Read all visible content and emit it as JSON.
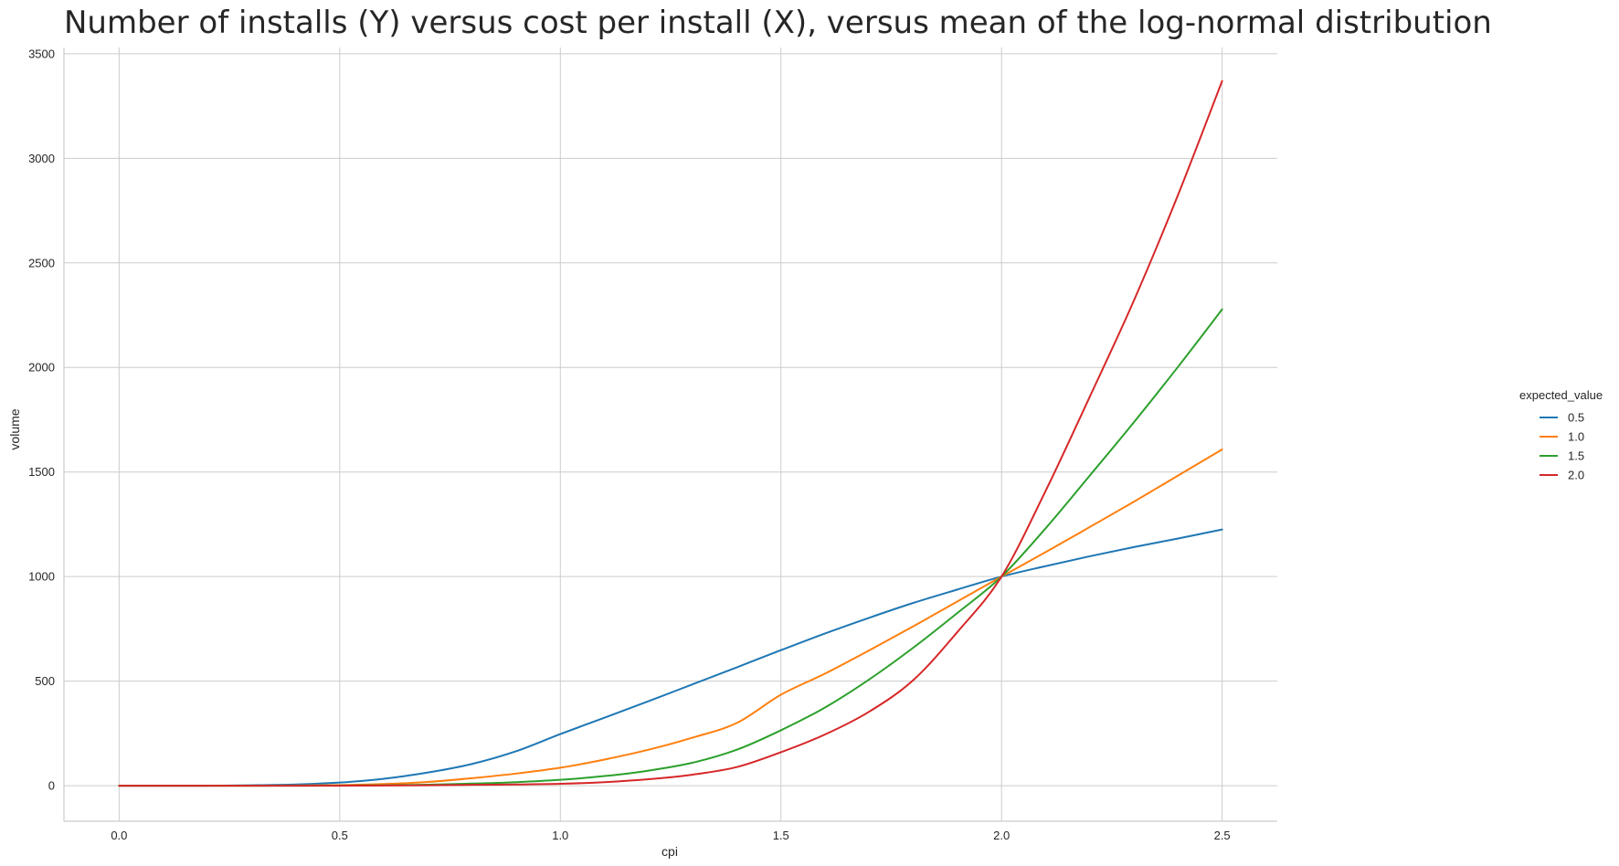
{
  "chart_data": {
    "type": "line",
    "title": "Number of installs (Y) versus cost per install (X), versus mean of the log-normal distribution",
    "xlabel": "cpi",
    "ylabel": "volume",
    "xlim": [
      -0.125,
      2.625
    ],
    "ylim": [
      -170,
      3530
    ],
    "xticks": [
      0.0,
      0.5,
      1.0,
      1.5,
      2.0,
      2.5
    ],
    "xtick_labels": [
      "0.0",
      "0.5",
      "1.0",
      "1.5",
      "2.0",
      "2.5"
    ],
    "yticks": [
      0,
      500,
      1000,
      1500,
      2000,
      2500,
      3000,
      3500
    ],
    "ytick_labels": [
      "0",
      "500",
      "1000",
      "1500",
      "2000",
      "2500",
      "3000",
      "3500"
    ],
    "grid": true,
    "legend": {
      "title": "expected_value",
      "placement": "right"
    },
    "x": [
      0.0,
      0.1,
      0.2,
      0.3,
      0.4,
      0.5,
      0.6,
      0.7,
      0.8,
      0.9,
      1.0,
      1.1,
      1.2,
      1.3,
      1.4,
      1.5,
      1.6,
      1.7,
      1.8,
      1.9,
      2.0,
      2.1,
      2.2,
      2.3,
      2.4,
      2.5
    ],
    "series": [
      {
        "name": "0.5",
        "color": "#1f77b4",
        "values": [
          0,
          0,
          0,
          2,
          6,
          15,
          33,
          63,
          104,
          165,
          247,
          325,
          404,
          485,
          566,
          648,
          728,
          803,
          874,
          938,
          1000,
          1050,
          1097,
          1141,
          1182,
          1225
        ]
      },
      {
        "name": "1.0",
        "color": "#ff7f0e",
        "values": [
          0,
          0,
          0,
          0,
          1,
          3,
          8,
          18,
          36,
          58,
          86,
          125,
          172,
          230,
          300,
          435,
          536,
          647,
          762,
          881,
          1000,
          1117,
          1237,
          1358,
          1483,
          1608
        ]
      },
      {
        "name": "1.5",
        "color": "#2ca02c",
        "values": [
          0,
          0,
          0,
          0,
          0,
          1,
          2,
          5,
          10,
          17,
          28,
          46,
          72,
          110,
          172,
          265,
          374,
          508,
          660,
          826,
          1000,
          1231,
          1483,
          1738,
          2003,
          2278
        ]
      },
      {
        "name": "2.0",
        "color": "#d62728",
        "values": [
          0,
          0,
          0,
          0,
          0,
          0,
          1,
          2,
          4,
          6,
          9,
          17,
          31,
          53,
          89,
          160,
          245,
          354,
          505,
          735,
          1000,
          1410,
          1860,
          2320,
          2825,
          3370
        ]
      }
    ]
  }
}
